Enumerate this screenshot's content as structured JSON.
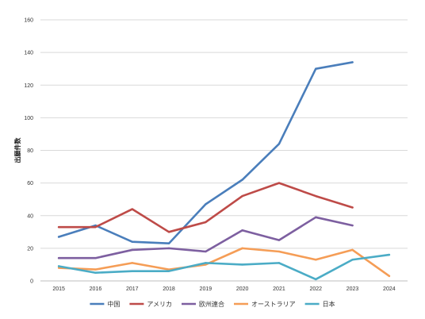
{
  "chart_data": {
    "type": "line",
    "title": "",
    "xlabel": "",
    "ylabel": "出願件数",
    "ylim": [
      0,
      160
    ],
    "yticks": [
      0,
      20,
      40,
      60,
      80,
      100,
      120,
      140,
      160
    ],
    "x": [
      "2015",
      "2016",
      "2017",
      "2018",
      "2019",
      "2020",
      "2021",
      "2022",
      "2023",
      "2024"
    ],
    "grid": true,
    "legend_position": "bottom",
    "series": [
      {
        "name": "中国",
        "color": "#4a7ebb",
        "values": [
          27,
          34,
          24,
          23,
          47,
          62,
          84,
          130,
          134,
          null
        ]
      },
      {
        "name": "アメリカ",
        "color": "#be4b48",
        "values": [
          33,
          33,
          44,
          30,
          36,
          52,
          60,
          52,
          45,
          null
        ]
      },
      {
        "name": "欧州連合",
        "color": "#7d5fa0",
        "values": [
          14,
          14,
          19,
          20,
          18,
          31,
          25,
          39,
          34,
          null
        ]
      },
      {
        "name": "オーストラリア",
        "color": "#f59d56",
        "values": [
          8,
          7,
          11,
          7,
          10,
          20,
          18,
          13,
          19,
          3
        ]
      },
      {
        "name": "日本",
        "color": "#4bacc6",
        "values": [
          9,
          5,
          6,
          6,
          11,
          10,
          11,
          1,
          13,
          16
        ]
      }
    ]
  }
}
